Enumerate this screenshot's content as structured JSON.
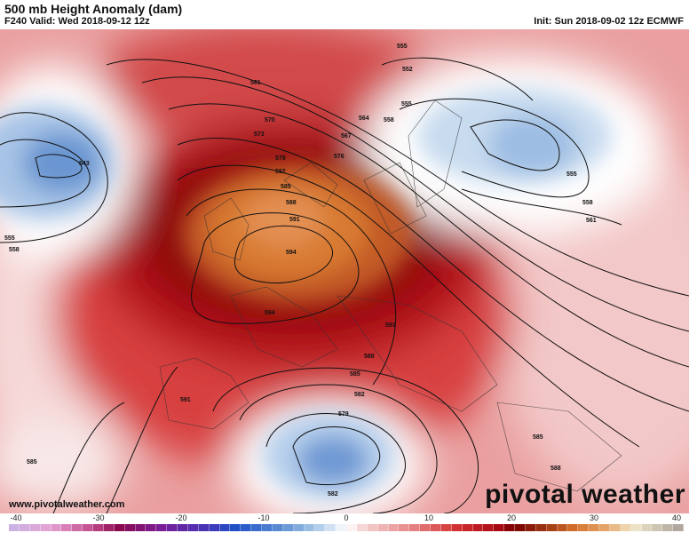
{
  "header": {
    "title": "500 mb Height Anomaly (dam)",
    "valid": "F240 Valid: Wed 2018-09-12 12z",
    "init": "Init: Sun 2018-09-02 12z ECMWF"
  },
  "footer": {
    "website": "www.pivotalweather.com",
    "brand": "pivotal weather"
  },
  "colorbar": {
    "unit": "dam",
    "min": -40,
    "max": 40,
    "tick_labels": [
      "-40",
      "-30",
      "-20",
      "-10",
      "0",
      "10",
      "20",
      "30",
      "40"
    ],
    "colors": {
      "neg_extreme": "#c8b4e6",
      "neg_strong": "#8a0a50",
      "neg": "#1e50c8",
      "zero": "#ffffff",
      "pos": "#d23232",
      "pos_strong": "#780000",
      "pos_extreme": "#a8a09a"
    }
  },
  "contour_labels": [
    "561",
    "570",
    "573",
    "579",
    "582",
    "585",
    "588",
    "591",
    "594",
    "594",
    "564",
    "567",
    "576",
    "555",
    "552",
    "558",
    "555",
    "543",
    "555",
    "558",
    "555",
    "558",
    "561",
    "591",
    "588",
    "585",
    "582",
    "579",
    "591",
    "585",
    "582",
    "588",
    "585"
  ]
}
